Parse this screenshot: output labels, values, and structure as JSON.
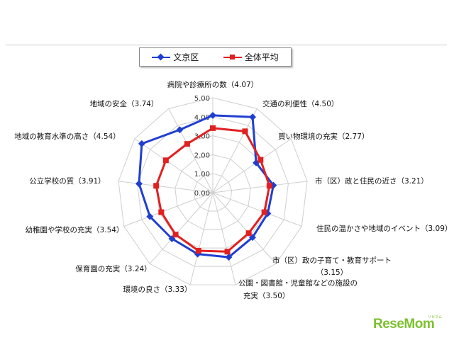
{
  "logo": {
    "text": "ReseMom",
    "sub": "リセマム"
  },
  "chart_data": {
    "type": "radar",
    "legend_position": "top",
    "grid": true,
    "r_range": [
      0,
      5
    ],
    "r_ticks": [
      "0.00",
      "1.00",
      "2.00",
      "3.00",
      "4.00",
      "5.00"
    ],
    "categories": [
      "病院や診療所の数（4.07）",
      "交通の利便性（4.50）",
      "買い物環境の充実（2.77）",
      "市（区）政と住民の近さ（3.21）",
      "住民の温かさや地域のイベント（3.09）",
      "市（区）政の子育て・教育サポート（3.15）",
      "公園・図書館・児童館などの施設の充実（3.50）",
      "環境の良さ（3.33）",
      "保育園の充実（3.24）",
      "幼稚園や学校の充実（3.54）",
      "公立学校の質（3.91）",
      "地域の教育水準の高さ（4.54）",
      "地域の安全（3.74）"
    ],
    "series": [
      {
        "name": "文京区",
        "color": "#1f3fd0",
        "marker": "diamond",
        "values": [
          4.07,
          4.5,
          2.77,
          3.21,
          3.09,
          3.15,
          3.5,
          3.33,
          3.24,
          3.54,
          3.91,
          4.54,
          3.74
        ]
      },
      {
        "name": "全体平均",
        "color": "#e12020",
        "marker": "square",
        "values": [
          3.4,
          3.65,
          3.05,
          3.0,
          2.9,
          2.85,
          3.2,
          3.15,
          2.95,
          2.9,
          3.0,
          3.0,
          2.9
        ]
      }
    ]
  }
}
